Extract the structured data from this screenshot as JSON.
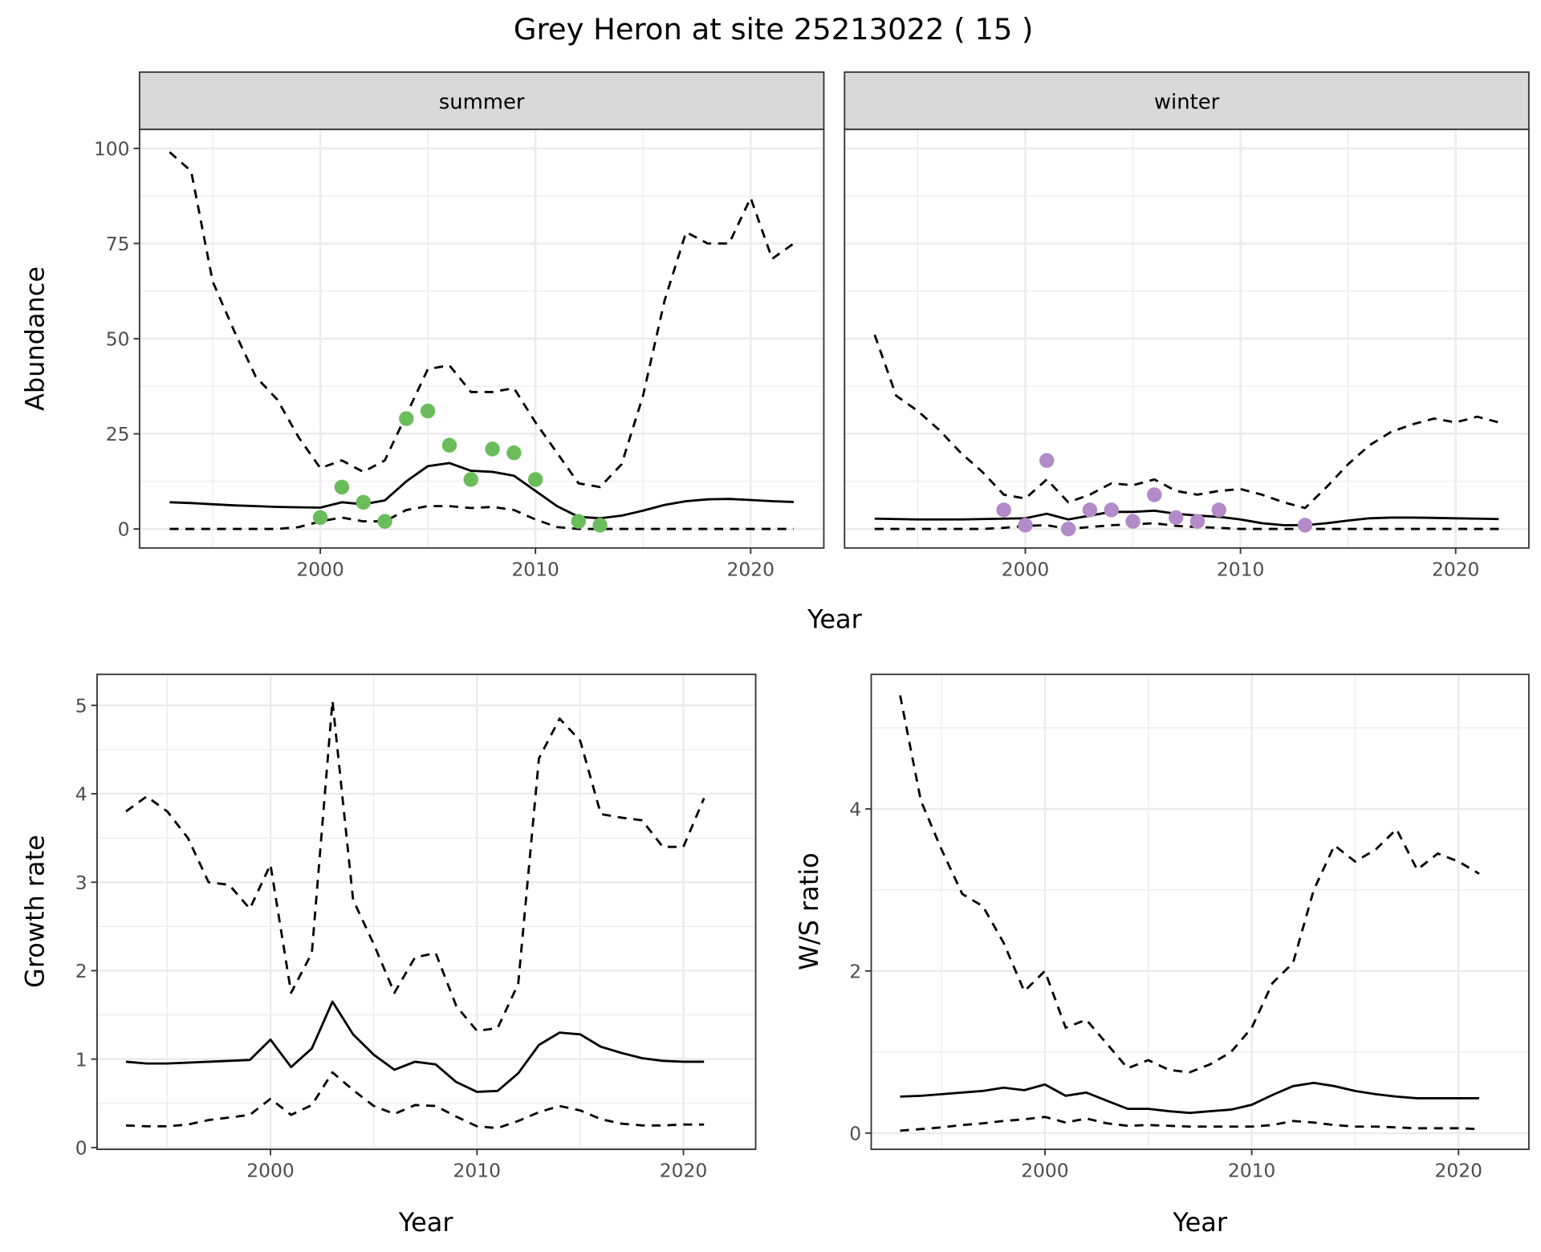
{
  "title": "Grey Heron at site 25213022 ( 15 )",
  "colors": {
    "summer_points": "#6abd5a",
    "winter_points": "#b28bc8",
    "strip_bg": "#d9d9d9",
    "grid": "#ebebeb"
  },
  "chart_data": [
    {
      "type": "line",
      "panel": "summer",
      "strip_label": "summer",
      "xlabel": "Year",
      "ylabel": "Abundance",
      "xlim": [
        1991.6,
        2023.4
      ],
      "ylim": [
        -5,
        105
      ],
      "xticks": [
        2000,
        2010,
        2020
      ],
      "yticks": [
        0,
        25,
        50,
        75,
        100
      ],
      "x": [
        1993,
        1994,
        1995,
        1996,
        1997,
        1998,
        1999,
        2000,
        2001,
        2002,
        2003,
        2004,
        2005,
        2006,
        2007,
        2008,
        2009,
        2010,
        2011,
        2012,
        2013,
        2014,
        2015,
        2016,
        2017,
        2018,
        2019,
        2020,
        2021,
        2022
      ],
      "series": [
        {
          "name": "estimate",
          "style": "solid",
          "values": [
            7,
            6.8,
            6.5,
            6.2,
            6,
            5.8,
            5.7,
            5.6,
            7,
            6.5,
            7.5,
            12.5,
            16.5,
            17.3,
            15.3,
            15,
            14,
            10,
            6,
            3.2,
            2.8,
            3.5,
            4.8,
            6.3,
            7.3,
            7.8,
            7.9,
            7.6,
            7.3,
            7.1
          ]
        },
        {
          "name": "upper",
          "style": "dashed",
          "values": [
            99,
            94,
            65,
            52,
            40,
            34,
            24,
            16,
            18,
            15,
            18,
            30,
            42,
            43,
            36,
            36,
            37,
            28,
            20,
            12,
            11,
            17,
            35,
            60,
            78,
            75,
            75,
            87,
            71,
            75
          ]
        },
        {
          "name": "lower",
          "style": "dashed",
          "values": [
            0,
            0,
            0,
            0,
            0,
            0,
            0.5,
            2,
            3,
            2,
            2,
            5,
            6,
            6,
            5.5,
            5.8,
            5,
            2.5,
            0.5,
            0,
            0,
            0,
            0,
            0,
            0,
            0,
            0,
            0,
            0,
            0
          ]
        }
      ],
      "points": {
        "x": [
          2000,
          2001,
          2002,
          2003,
          2004,
          2005,
          2006,
          2007,
          2008,
          2009,
          2010,
          2012,
          2013
        ],
        "y": [
          3,
          11,
          7,
          2,
          29,
          31,
          22,
          13,
          21,
          20,
          13,
          2,
          1
        ]
      }
    },
    {
      "type": "line",
      "panel": "winter",
      "strip_label": "winter",
      "xlabel": "Year",
      "ylabel": "Abundance",
      "xlim": [
        1991.6,
        2023.4
      ],
      "ylim": [
        -5,
        105
      ],
      "xticks": [
        2000,
        2010,
        2020
      ],
      "yticks": [],
      "x": [
        1993,
        1994,
        1995,
        1996,
        1997,
        1998,
        1999,
        2000,
        2001,
        2002,
        2003,
        2004,
        2005,
        2006,
        2007,
        2008,
        2009,
        2010,
        2011,
        2012,
        2013,
        2014,
        2015,
        2016,
        2017,
        2018,
        2019,
        2020,
        2021,
        2022
      ],
      "series": [
        {
          "name": "estimate",
          "style": "solid",
          "values": [
            2.7,
            2.6,
            2.5,
            2.5,
            2.5,
            2.6,
            2.7,
            2.8,
            4,
            2.5,
            3.5,
            4.5,
            4.5,
            4.8,
            4,
            3.5,
            3.2,
            2.5,
            1.5,
            1,
            1,
            1.5,
            2.2,
            2.8,
            3,
            3,
            2.9,
            2.8,
            2.7,
            2.6
          ]
        },
        {
          "name": "upper",
          "style": "dashed",
          "values": [
            51,
            35,
            31,
            26,
            20,
            15,
            9,
            8,
            13,
            7,
            9,
            12,
            11.5,
            13,
            10,
            9,
            10,
            10.5,
            9,
            7,
            5.5,
            11,
            17,
            22,
            25.5,
            27.5,
            29,
            28,
            29.5,
            28
          ]
        },
        {
          "name": "lower",
          "style": "dashed",
          "values": [
            0,
            0,
            0,
            0,
            0,
            0,
            0.3,
            0.8,
            1,
            0,
            0.5,
            1,
            1.2,
            1.5,
            0.8,
            0.5,
            0.3,
            0,
            0,
            0,
            0,
            0,
            0,
            0,
            0,
            0,
            0,
            0,
            0,
            0
          ]
        }
      ],
      "points": {
        "x": [
          1999,
          2000,
          2001,
          2002,
          2003,
          2004,
          2005,
          2006,
          2007,
          2008,
          2009,
          2013
        ],
        "y": [
          5,
          1,
          18,
          0,
          5,
          5,
          2,
          9,
          3,
          2,
          5,
          1
        ]
      }
    },
    {
      "type": "line",
      "panel": "growth",
      "xlabel": "Year",
      "ylabel": "Growth rate",
      "xlim": [
        1991.6,
        2023.5
      ],
      "ylim": [
        -0.02,
        5.35
      ],
      "xticks": [
        2000,
        2010,
        2020
      ],
      "yticks": [
        0,
        1,
        2,
        3,
        4,
        5
      ],
      "x": [
        1993,
        1994,
        1995,
        1996,
        1997,
        1998,
        1999,
        2000,
        2001,
        2002,
        2003,
        2004,
        2005,
        2006,
        2007,
        2008,
        2009,
        2010,
        2011,
        2012,
        2013,
        2014,
        2015,
        2016,
        2017,
        2018,
        2019,
        2020,
        2021
      ],
      "series": [
        {
          "name": "estimate",
          "style": "solid",
          "values": [
            0.97,
            0.95,
            0.95,
            0.96,
            0.97,
            0.98,
            0.99,
            1.22,
            0.91,
            1.12,
            1.65,
            1.28,
            1.05,
            0.88,
            0.97,
            0.94,
            0.74,
            0.63,
            0.64,
            0.84,
            1.16,
            1.3,
            1.28,
            1.14,
            1.07,
            1.01,
            0.98,
            0.97,
            0.97
          ]
        },
        {
          "name": "upper",
          "style": "dashed",
          "values": [
            3.8,
            3.97,
            3.8,
            3.5,
            3.0,
            2.97,
            2.7,
            3.2,
            1.75,
            2.2,
            5.05,
            2.8,
            2.3,
            1.75,
            2.15,
            2.2,
            1.6,
            1.32,
            1.35,
            1.85,
            4.4,
            4.85,
            4.6,
            3.77,
            3.73,
            3.7,
            3.4,
            3.4,
            3.95
          ]
        },
        {
          "name": "lower",
          "style": "dashed",
          "values": [
            0.25,
            0.24,
            0.24,
            0.26,
            0.31,
            0.34,
            0.37,
            0.55,
            0.37,
            0.48,
            0.85,
            0.65,
            0.47,
            0.38,
            0.48,
            0.47,
            0.35,
            0.24,
            0.22,
            0.3,
            0.4,
            0.47,
            0.42,
            0.32,
            0.27,
            0.25,
            0.25,
            0.26,
            0.26
          ]
        }
      ]
    },
    {
      "type": "line",
      "panel": "ratio",
      "xlabel": "Year",
      "ylabel": "W/S ratio",
      "xlim": [
        1991.6,
        2023.4
      ],
      "ylim": [
        -0.2,
        5.66
      ],
      "xticks": [
        2000,
        2010,
        2020
      ],
      "yticks": [
        0,
        2,
        4
      ],
      "x": [
        1993,
        1994,
        1995,
        1996,
        1997,
        1998,
        1999,
        2000,
        2001,
        2002,
        2003,
        2004,
        2005,
        2006,
        2007,
        2008,
        2009,
        2010,
        2011,
        2012,
        2013,
        2014,
        2015,
        2016,
        2017,
        2018,
        2019,
        2020,
        2021
      ],
      "series": [
        {
          "name": "estimate",
          "style": "solid",
          "values": [
            0.45,
            0.46,
            0.48,
            0.5,
            0.52,
            0.56,
            0.53,
            0.6,
            0.46,
            0.5,
            0.4,
            0.3,
            0.3,
            0.27,
            0.25,
            0.27,
            0.29,
            0.35,
            0.47,
            0.58,
            0.62,
            0.58,
            0.52,
            0.48,
            0.45,
            0.43,
            0.43,
            0.43,
            0.43
          ]
        },
        {
          "name": "upper",
          "style": "dashed",
          "values": [
            5.4,
            4.1,
            3.5,
            2.95,
            2.8,
            2.35,
            1.75,
            2.0,
            1.3,
            1.4,
            1.1,
            0.8,
            0.9,
            0.78,
            0.75,
            0.85,
            1.0,
            1.3,
            1.85,
            2.1,
            3.0,
            3.55,
            3.35,
            3.5,
            3.75,
            3.25,
            3.45,
            3.35,
            3.2
          ]
        },
        {
          "name": "lower",
          "style": "dashed",
          "values": [
            0.03,
            0.05,
            0.07,
            0.1,
            0.12,
            0.15,
            0.17,
            0.2,
            0.13,
            0.18,
            0.12,
            0.09,
            0.1,
            0.09,
            0.08,
            0.08,
            0.08,
            0.08,
            0.1,
            0.15,
            0.13,
            0.1,
            0.08,
            0.08,
            0.07,
            0.06,
            0.06,
            0.06,
            0.05
          ]
        }
      ]
    }
  ]
}
